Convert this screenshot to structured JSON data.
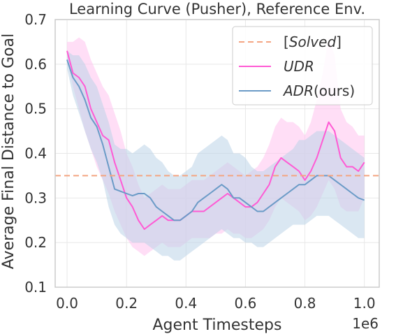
{
  "chart_data": {
    "type": "line",
    "title": "Learning Curve (Pusher), Reference Env.",
    "xlabel": "Agent Timesteps",
    "ylabel": "Average Final Distance to Goal",
    "x_offset_label": "1e6",
    "xlim": [
      -0.04,
      1.05
    ],
    "ylim": [
      0.1,
      0.7
    ],
    "x_ticks": [
      "0.0",
      "0.2",
      "0.4",
      "0.6",
      "0.8",
      "1.0"
    ],
    "y_ticks": [
      "0.1",
      "0.2",
      "0.3",
      "0.4",
      "0.5",
      "0.6",
      "0.7"
    ],
    "grid": true,
    "legend_position": "top-right",
    "solved_threshold": 0.35,
    "legend": {
      "solved": {
        "prefix": "[",
        "label": "Solved",
        "suffix": "]"
      },
      "udr": "UDR",
      "adr": {
        "prefix": "ADR",
        "suffix": "(ours)"
      }
    },
    "colors": {
      "solved": "#f4a582",
      "udr": "#ff5ad4",
      "adr": "#6b9bc7",
      "udr_band": "#ffc3ee",
      "adr_band": "#bcd3e8",
      "axis": "#cccccc",
      "grid": "#e8e8e8"
    },
    "series": [
      {
        "name": "UDR",
        "x": [
          0.0,
          0.02,
          0.04,
          0.06,
          0.08,
          0.1,
          0.12,
          0.14,
          0.16,
          0.18,
          0.2,
          0.22,
          0.24,
          0.26,
          0.28,
          0.3,
          0.32,
          0.34,
          0.36,
          0.38,
          0.4,
          0.42,
          0.44,
          0.46,
          0.48,
          0.5,
          0.52,
          0.54,
          0.56,
          0.58,
          0.6,
          0.62,
          0.64,
          0.66,
          0.68,
          0.7,
          0.72,
          0.74,
          0.76,
          0.78,
          0.8,
          0.82,
          0.84,
          0.86,
          0.88,
          0.9,
          0.92,
          0.94,
          0.96,
          0.98,
          1.0
        ],
        "values": [
          0.63,
          0.58,
          0.57,
          0.55,
          0.5,
          0.47,
          0.44,
          0.43,
          0.38,
          0.34,
          0.3,
          0.28,
          0.25,
          0.23,
          0.24,
          0.25,
          0.26,
          0.25,
          0.25,
          0.25,
          0.26,
          0.27,
          0.27,
          0.27,
          0.28,
          0.29,
          0.3,
          0.31,
          0.3,
          0.29,
          0.28,
          0.28,
          0.29,
          0.31,
          0.33,
          0.37,
          0.39,
          0.38,
          0.37,
          0.36,
          0.34,
          0.36,
          0.39,
          0.43,
          0.47,
          0.45,
          0.39,
          0.37,
          0.37,
          0.36,
          0.38
        ],
        "lower": [
          0.61,
          0.55,
          0.5,
          0.45,
          0.41,
          0.37,
          0.34,
          0.31,
          0.27,
          0.24,
          0.21,
          0.19,
          0.18,
          0.17,
          0.18,
          0.19,
          0.2,
          0.19,
          0.19,
          0.19,
          0.2,
          0.21,
          0.21,
          0.21,
          0.21,
          0.22,
          0.22,
          0.23,
          0.22,
          0.22,
          0.21,
          0.21,
          0.22,
          0.23,
          0.25,
          0.28,
          0.3,
          0.29,
          0.28,
          0.27,
          0.25,
          0.26,
          0.28,
          0.31,
          0.34,
          0.32,
          0.28,
          0.27,
          0.27,
          0.27,
          0.3
        ],
        "upper": [
          0.65,
          0.65,
          0.66,
          0.65,
          0.61,
          0.58,
          0.55,
          0.53,
          0.49,
          0.45,
          0.4,
          0.37,
          0.33,
          0.3,
          0.31,
          0.32,
          0.33,
          0.32,
          0.32,
          0.32,
          0.33,
          0.34,
          0.34,
          0.34,
          0.35,
          0.36,
          0.37,
          0.38,
          0.37,
          0.36,
          0.35,
          0.36,
          0.37,
          0.39,
          0.42,
          0.46,
          0.48,
          0.47,
          0.47,
          0.46,
          0.44,
          0.47,
          0.52,
          0.58,
          0.66,
          0.62,
          0.5,
          0.47,
          0.46,
          0.44,
          0.44
        ]
      },
      {
        "name": "ADR(ours)",
        "x": [
          0.0,
          0.02,
          0.04,
          0.06,
          0.08,
          0.1,
          0.12,
          0.14,
          0.16,
          0.18,
          0.2,
          0.22,
          0.24,
          0.26,
          0.28,
          0.3,
          0.32,
          0.34,
          0.36,
          0.38,
          0.4,
          0.42,
          0.44,
          0.46,
          0.48,
          0.5,
          0.52,
          0.54,
          0.56,
          0.58,
          0.6,
          0.62,
          0.64,
          0.66,
          0.68,
          0.7,
          0.72,
          0.74,
          0.76,
          0.78,
          0.8,
          0.82,
          0.84,
          0.86,
          0.88,
          0.9,
          0.92,
          0.94,
          0.96,
          0.98,
          1.0
        ],
        "values": [
          0.61,
          0.57,
          0.55,
          0.52,
          0.48,
          0.46,
          0.42,
          0.37,
          0.32,
          0.315,
          0.31,
          0.305,
          0.31,
          0.31,
          0.3,
          0.28,
          0.27,
          0.26,
          0.25,
          0.25,
          0.26,
          0.27,
          0.29,
          0.3,
          0.31,
          0.32,
          0.33,
          0.32,
          0.3,
          0.3,
          0.29,
          0.28,
          0.27,
          0.27,
          0.28,
          0.29,
          0.3,
          0.31,
          0.32,
          0.33,
          0.33,
          0.34,
          0.35,
          0.35,
          0.35,
          0.34,
          0.33,
          0.32,
          0.31,
          0.3,
          0.295
        ],
        "lower": [
          0.59,
          0.53,
          0.49,
          0.45,
          0.41,
          0.38,
          0.34,
          0.28,
          0.24,
          0.22,
          0.21,
          0.2,
          0.2,
          0.2,
          0.19,
          0.18,
          0.17,
          0.17,
          0.16,
          0.16,
          0.17,
          0.18,
          0.19,
          0.2,
          0.21,
          0.22,
          0.23,
          0.22,
          0.21,
          0.21,
          0.2,
          0.2,
          0.19,
          0.19,
          0.2,
          0.21,
          0.22,
          0.23,
          0.24,
          0.24,
          0.24,
          0.25,
          0.26,
          0.26,
          0.26,
          0.25,
          0.24,
          0.23,
          0.22,
          0.21,
          0.21
        ],
        "upper": [
          0.63,
          0.62,
          0.62,
          0.6,
          0.57,
          0.55,
          0.51,
          0.47,
          0.42,
          0.41,
          0.41,
          0.4,
          0.41,
          0.42,
          0.41,
          0.39,
          0.38,
          0.36,
          0.35,
          0.35,
          0.36,
          0.37,
          0.4,
          0.41,
          0.42,
          0.43,
          0.44,
          0.43,
          0.4,
          0.4,
          0.39,
          0.37,
          0.36,
          0.36,
          0.37,
          0.38,
          0.39,
          0.4,
          0.41,
          0.43,
          0.43,
          0.44,
          0.45,
          0.45,
          0.45,
          0.44,
          0.43,
          0.42,
          0.41,
          0.4,
          0.39
        ]
      }
    ]
  }
}
